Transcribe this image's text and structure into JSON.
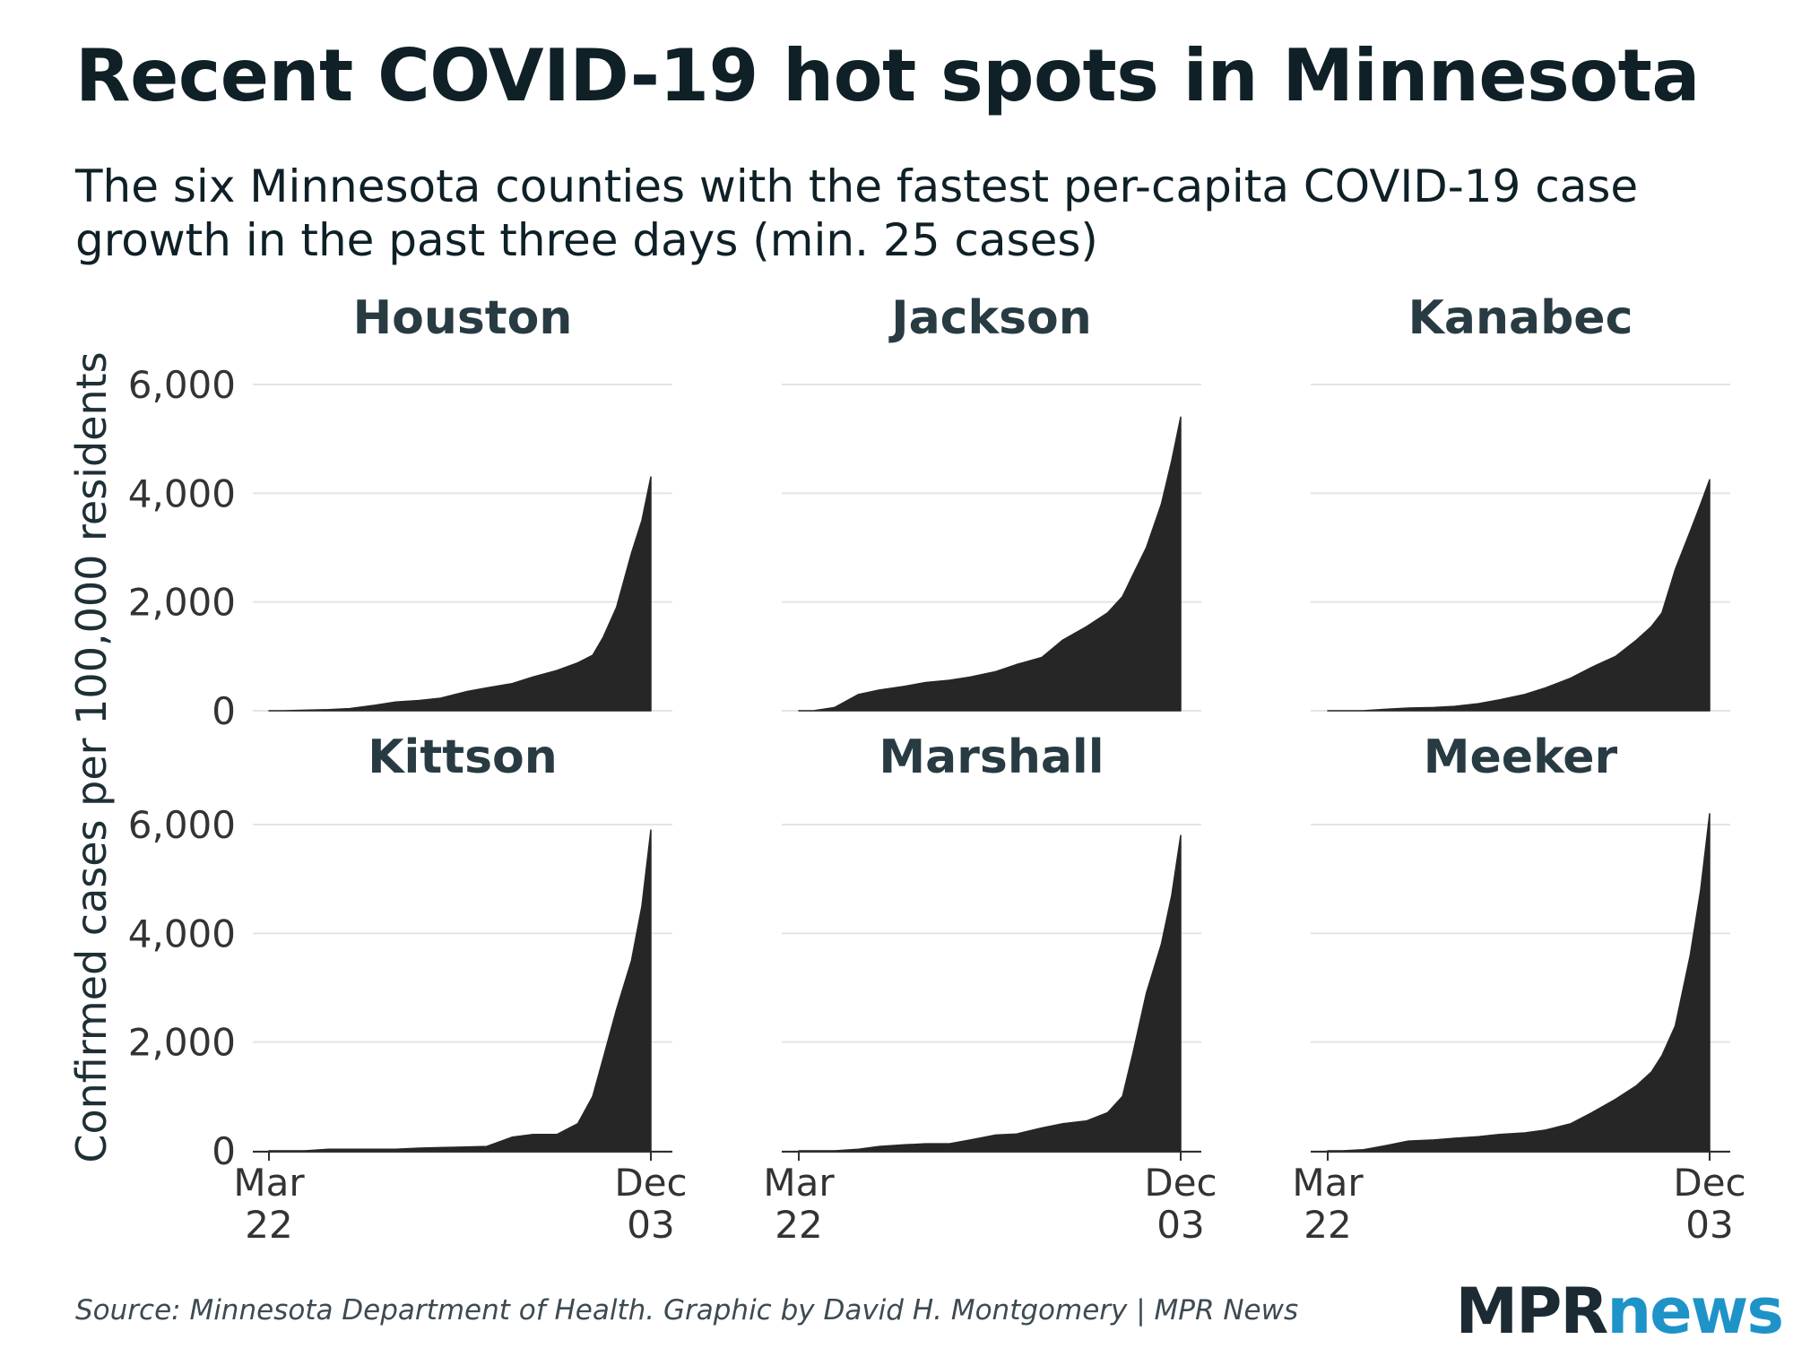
{
  "title": "Recent COVID-19 hot spots in Minnesota",
  "subtitle": "The six Minnesota counties with the fastest per-capita COVID-19 case growth in the past three days (min. 25 cases)",
  "source": "Source: Minnesota Department of Health. Graphic by David H. Montgomery | MPR News",
  "logo": {
    "part1": "MPR",
    "part2": "news"
  },
  "colors": {
    "area": "#262626",
    "grid": "#e4e4e4",
    "text": "#0f2027",
    "axis": "#333333",
    "logo_accent": "#1e93c8"
  },
  "chart_data": {
    "type": "area",
    "layout": "small-multiples 3x2, shared axes",
    "ylabel": "Confirmed cases per 100,000 residents",
    "xlabel": "",
    "ylim": [
      0,
      6000
    ],
    "y_ticks": [
      0,
      2000,
      4000,
      6000
    ],
    "y_tick_labels": [
      "0",
      "2,000",
      "4,000",
      "6,000"
    ],
    "xlim": [
      "2020-03-22",
      "2020-12-03"
    ],
    "x_tick_labels": [
      {
        "date": "2020-03-22",
        "line1": "Mar",
        "line2": "22"
      },
      {
        "date": "2020-12-03",
        "line1": "Dec",
        "line2": "03"
      }
    ],
    "grid": true,
    "series": [
      {
        "name": "Houston",
        "x": [
          "2020-03-22",
          "2020-04-01",
          "2020-04-15",
          "2020-05-01",
          "2020-05-15",
          "2020-06-01",
          "2020-06-15",
          "2020-07-01",
          "2020-07-15",
          "2020-08-01",
          "2020-08-15",
          "2020-09-01",
          "2020-09-15",
          "2020-10-01",
          "2020-10-15",
          "2020-10-25",
          "2020-11-01",
          "2020-11-10",
          "2020-11-20",
          "2020-11-27",
          "2020-12-03"
        ],
        "y": [
          0,
          0,
          10,
          20,
          40,
          100,
          160,
          190,
          230,
          350,
          420,
          500,
          620,
          740,
          880,
          1020,
          1350,
          1900,
          2900,
          3500,
          4300
        ]
      },
      {
        "name": "Jackson",
        "x": [
          "2020-03-22",
          "2020-04-01",
          "2020-04-15",
          "2020-05-01",
          "2020-05-15",
          "2020-06-01",
          "2020-06-15",
          "2020-07-01",
          "2020-07-15",
          "2020-08-01",
          "2020-08-15",
          "2020-09-01",
          "2020-09-15",
          "2020-10-01",
          "2020-10-15",
          "2020-10-25",
          "2020-11-01",
          "2020-11-10",
          "2020-11-20",
          "2020-11-27",
          "2020-12-03"
        ],
        "y": [
          0,
          0,
          60,
          300,
          380,
          450,
          520,
          560,
          620,
          720,
          850,
          980,
          1300,
          1550,
          1800,
          2100,
          2500,
          3000,
          3800,
          4600,
          5400
        ]
      },
      {
        "name": "Kanabec",
        "x": [
          "2020-03-22",
          "2020-04-01",
          "2020-04-15",
          "2020-05-01",
          "2020-05-15",
          "2020-06-01",
          "2020-06-15",
          "2020-07-01",
          "2020-07-15",
          "2020-08-01",
          "2020-08-15",
          "2020-09-01",
          "2020-09-15",
          "2020-10-01",
          "2020-10-15",
          "2020-10-25",
          "2020-11-01",
          "2020-11-10",
          "2020-11-20",
          "2020-11-27",
          "2020-12-03"
        ],
        "y": [
          0,
          0,
          0,
          30,
          50,
          60,
          80,
          130,
          200,
          300,
          420,
          600,
          800,
          1000,
          1300,
          1550,
          1800,
          2600,
          3300,
          3800,
          4250
        ]
      },
      {
        "name": "Kittson",
        "x": [
          "2020-03-22",
          "2020-04-01",
          "2020-04-15",
          "2020-05-01",
          "2020-05-15",
          "2020-06-01",
          "2020-06-15",
          "2020-07-01",
          "2020-07-15",
          "2020-08-01",
          "2020-08-15",
          "2020-09-01",
          "2020-09-15",
          "2020-10-01",
          "2020-10-15",
          "2020-10-25",
          "2020-11-01",
          "2020-11-10",
          "2020-11-20",
          "2020-11-27",
          "2020-12-03"
        ],
        "y": [
          0,
          0,
          0,
          30,
          30,
          30,
          30,
          50,
          60,
          70,
          80,
          250,
          300,
          300,
          500,
          1000,
          1700,
          2600,
          3500,
          4500,
          5900
        ]
      },
      {
        "name": "Marshall",
        "x": [
          "2020-03-22",
          "2020-04-01",
          "2020-04-15",
          "2020-05-01",
          "2020-05-15",
          "2020-06-01",
          "2020-06-15",
          "2020-07-01",
          "2020-07-15",
          "2020-08-01",
          "2020-08-15",
          "2020-09-01",
          "2020-09-15",
          "2020-10-01",
          "2020-10-15",
          "2020-10-25",
          "2020-11-01",
          "2020-11-10",
          "2020-11-20",
          "2020-11-27",
          "2020-12-03"
        ],
        "y": [
          0,
          0,
          0,
          30,
          80,
          110,
          130,
          130,
          200,
          290,
          310,
          420,
          500,
          550,
          700,
          1000,
          1800,
          2900,
          3800,
          4700,
          5800
        ]
      },
      {
        "name": "Meeker",
        "x": [
          "2020-03-22",
          "2020-04-01",
          "2020-04-15",
          "2020-05-01",
          "2020-05-15",
          "2020-06-01",
          "2020-06-15",
          "2020-07-01",
          "2020-07-15",
          "2020-08-01",
          "2020-08-15",
          "2020-09-01",
          "2020-09-15",
          "2020-10-01",
          "2020-10-15",
          "2020-10-25",
          "2020-11-01",
          "2020-11-10",
          "2020-11-20",
          "2020-11-27",
          "2020-12-03"
        ],
        "y": [
          0,
          0,
          20,
          100,
          180,
          200,
          230,
          260,
          300,
          330,
          380,
          500,
          700,
          950,
          1200,
          1450,
          1750,
          2300,
          3600,
          4800,
          6200
        ]
      }
    ]
  }
}
